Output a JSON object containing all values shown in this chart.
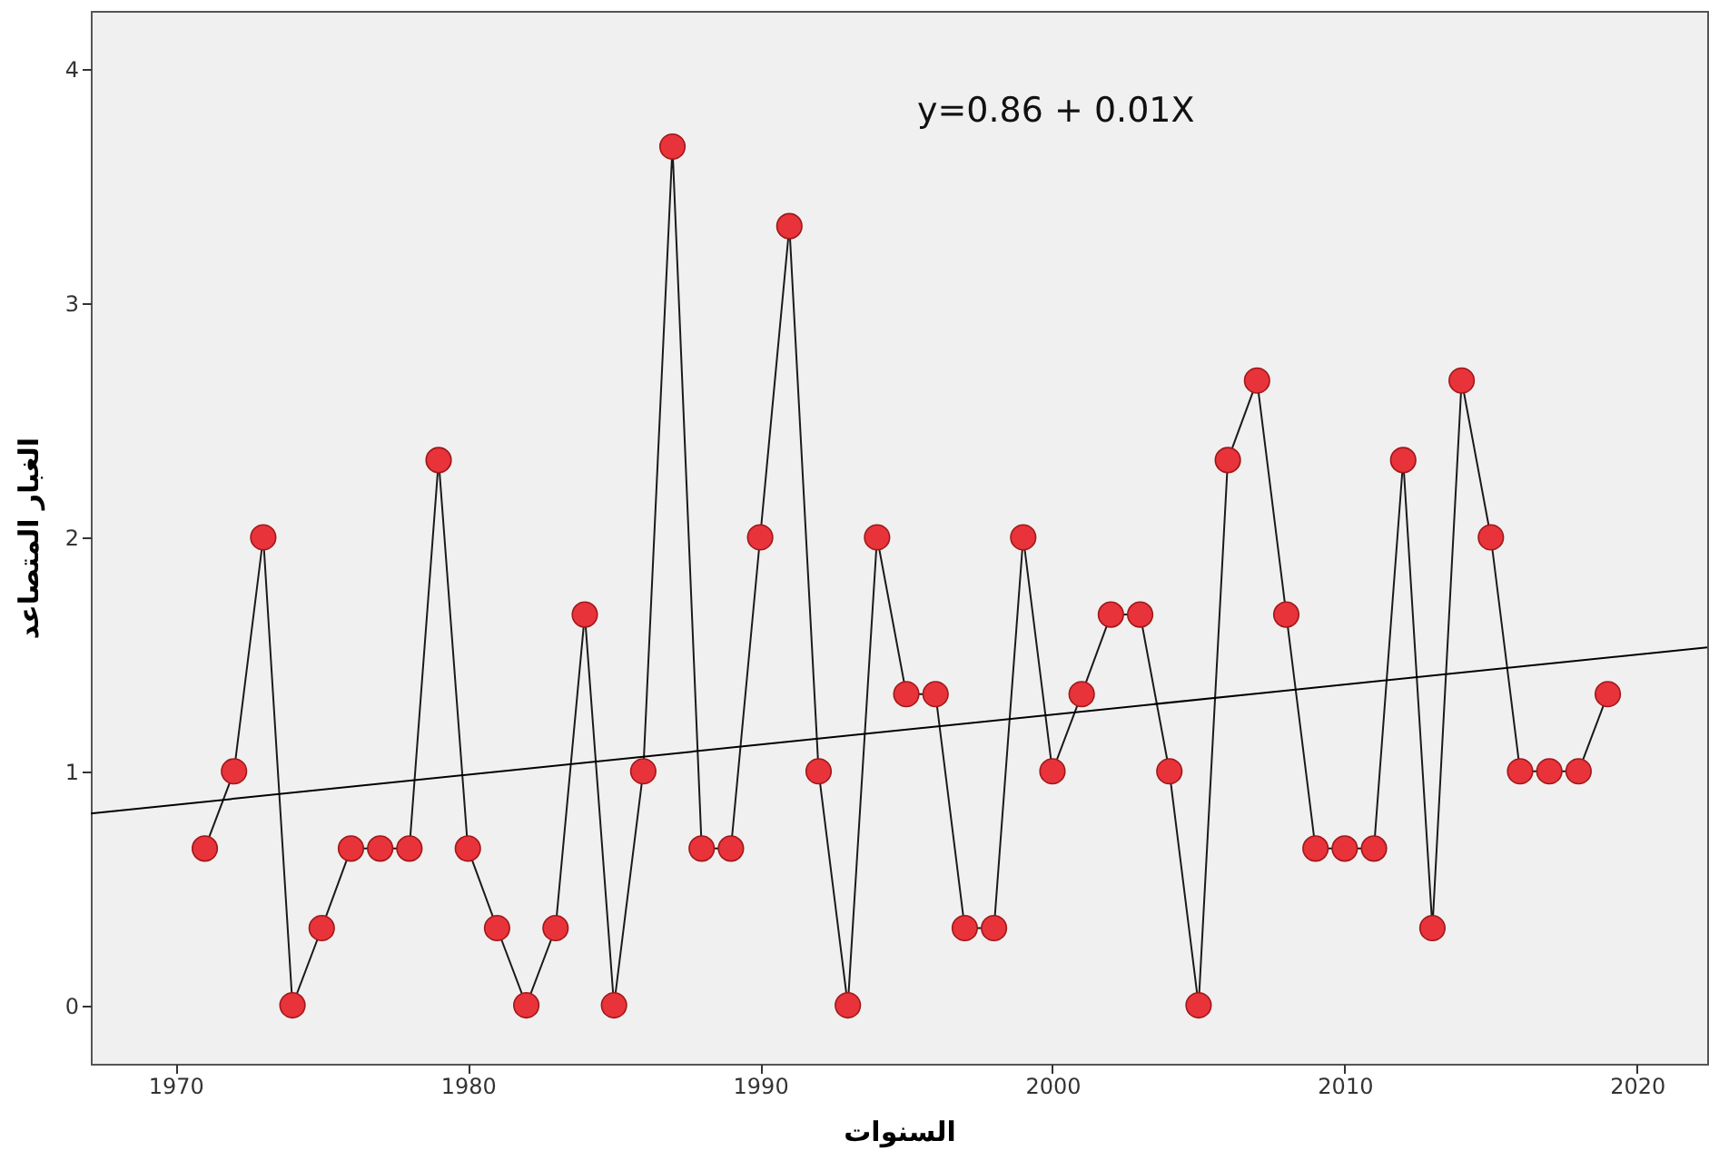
{
  "chart_data": {
    "type": "line",
    "xlabel": "السنوات",
    "ylabel": "الغبار المتصاعد",
    "x": [
      1971,
      1972,
      1973,
      1974,
      1975,
      1976,
      1977,
      1978,
      1979,
      1980,
      1981,
      1982,
      1983,
      1984,
      1985,
      1986,
      1987,
      1988,
      1989,
      1990,
      1991,
      1992,
      1993,
      1994,
      1995,
      1996,
      1997,
      1998,
      1999,
      2000,
      2001,
      2002,
      2003,
      2004,
      2005,
      2006,
      2007,
      2008,
      2009,
      2010,
      2011,
      2012,
      2013,
      2014,
      2015,
      2016,
      2017,
      2018,
      2019
    ],
    "series": [
      {
        "color": "#e8333b",
        "marker": "circle",
        "values": [
          0.67,
          1,
          2,
          0,
          0.33,
          0.67,
          0.67,
          0.67,
          2.33,
          0.67,
          0.33,
          0,
          0.33,
          1.67,
          0,
          1,
          3.67,
          0.67,
          0.67,
          2,
          3.33,
          1,
          0,
          2,
          1.33,
          1.33,
          0.33,
          0.33,
          2,
          1,
          1.33,
          1.67,
          1.67,
          1,
          0,
          2.33,
          2.67,
          1.67,
          0.67,
          0.67,
          0.67,
          2.33,
          0.33,
          2.67,
          2,
          1,
          1,
          1,
          1.33
        ]
      },
      {
        "type": "line",
        "color": "#000000",
        "marker": "none",
        "x": [
          1967.1,
          2022.4
        ],
        "values": [
          0.82,
          1.53
        ]
      }
    ],
    "annotations": [
      "y=0.86 + 0.01X"
    ],
    "xlim": [
      1967.1,
      2022.4
    ],
    "ylim": [
      -0.25,
      4.25
    ],
    "xticks": [
      1970,
      1980,
      1990,
      2000,
      2010,
      2020
    ],
    "yticks": [
      0,
      1,
      2,
      3,
      4
    ],
    "grid": false
  }
}
